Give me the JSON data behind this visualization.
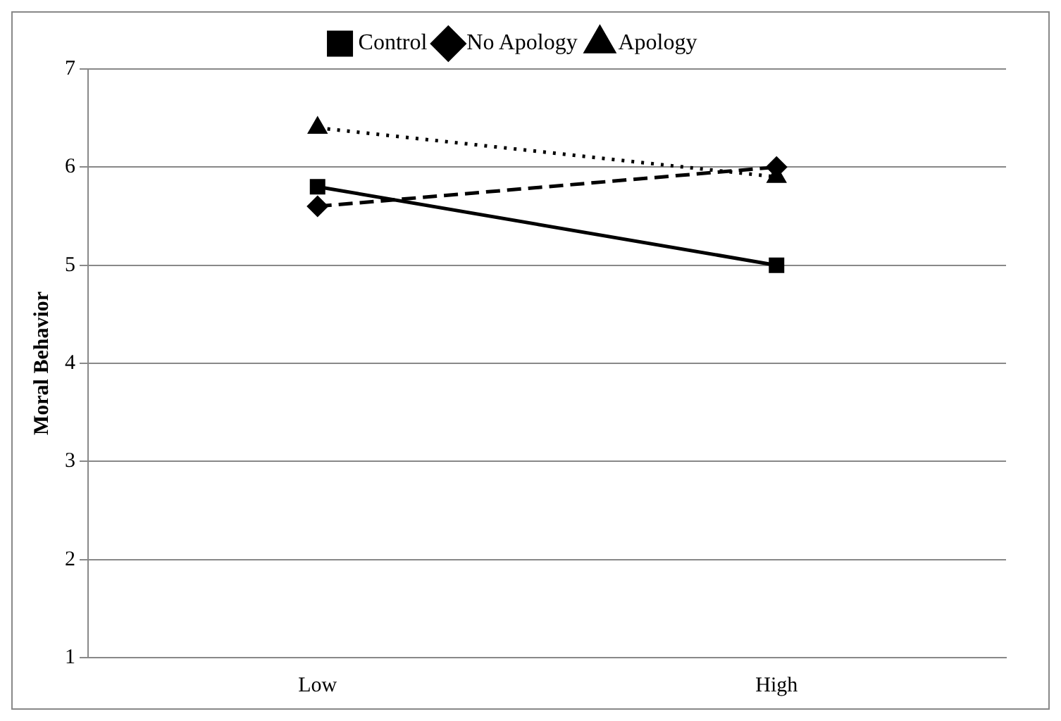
{
  "chart_data": {
    "type": "line",
    "ylabel": "Moral Behavior",
    "categories": [
      "Low",
      "High"
    ],
    "series": [
      {
        "name": "Control",
        "color": "#000000",
        "values": [
          5.8,
          5.0
        ],
        "marker": "square",
        "line_style": "solid"
      },
      {
        "name": "No Apology",
        "color": "#000000",
        "values": [
          5.6,
          6.0
        ],
        "marker": "diamond",
        "line_style": "dashed"
      },
      {
        "name": "Apology",
        "color": "#000000",
        "values": [
          6.4,
          5.9
        ],
        "marker": "triangle",
        "line_style": "dotted"
      }
    ],
    "ylim": [
      1,
      7
    ],
    "yticks": [
      1,
      2,
      3,
      4,
      5,
      6,
      7
    ],
    "grid": "y",
    "legend": "top"
  }
}
